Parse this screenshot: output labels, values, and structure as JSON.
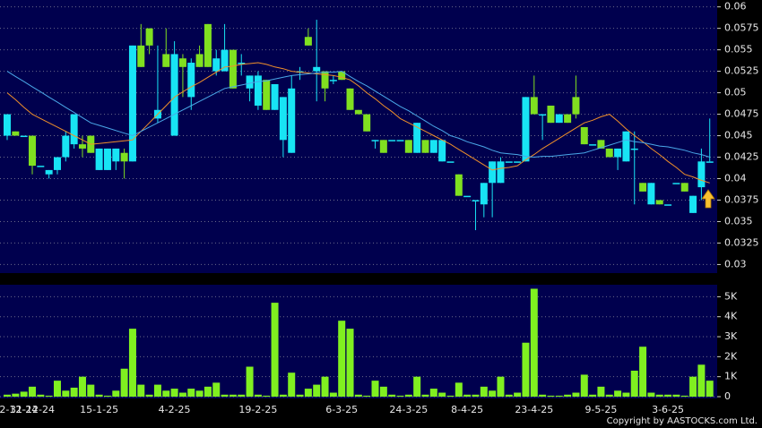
{
  "chart_data": [
    {
      "type": "candlestick",
      "categories": [
        null,
        "12-12-24",
        null,
        "31-12-24",
        null,
        null,
        null,
        null,
        null,
        null,
        null,
        "15-1-25",
        null,
        null,
        null,
        null,
        null,
        null,
        null,
        null,
        "4-2-25",
        null,
        null,
        null,
        null,
        null,
        null,
        null,
        null,
        null,
        "19-2-25",
        null,
        null,
        null,
        null,
        null,
        null,
        null,
        null,
        null,
        "6-3-25",
        null,
        null,
        null,
        null,
        null,
        null,
        null,
        "24-3-25",
        null,
        null,
        null,
        null,
        null,
        null,
        "8-4-25",
        null,
        null,
        null,
        null,
        null,
        null,
        null,
        "23-4-25",
        null,
        null,
        null,
        null,
        null,
        null,
        null,
        "9-5-25",
        null,
        null,
        null,
        null,
        null,
        null,
        null,
        "3-6-25",
        null,
        null,
        null,
        null,
        null
      ],
      "open": [
        0.045,
        0.0455,
        0.045,
        0.045,
        0.0415,
        0.0405,
        0.041,
        0.0425,
        0.044,
        0.044,
        0.045,
        0.041,
        0.041,
        0.042,
        0.043,
        0.042,
        0.0555,
        0.0575,
        0.047,
        0.0545,
        0.045,
        0.054,
        0.0495,
        0.0545,
        0.058,
        0.0525,
        0.0525,
        0.055,
        0.0535,
        0.0505,
        0.0485,
        0.0515,
        0.048,
        0.0445,
        0.043,
        0.0525,
        0.0565,
        0.0525,
        0.0525,
        0.0515,
        0.0525,
        0.0505,
        0.048,
        0.0475,
        0.0445,
        0.0445,
        0.0445,
        0.0445,
        0.0445,
        0.043,
        0.0445,
        0.043,
        0.042,
        0.042,
        0.0405,
        0.038,
        0.0375,
        0.037,
        0.0395,
        0.0395,
        0.042,
        0.042,
        0.042,
        0.0495,
        0.0475,
        0.0485,
        0.0465,
        0.0475,
        0.0495,
        0.046,
        0.044,
        0.0445,
        0.0435,
        0.0425,
        0.042,
        0.0435,
        0.0395,
        0.037,
        0.0375,
        0.037,
        0.0395,
        0.0395,
        0.036,
        0.039,
        0.042
      ],
      "high": [
        0.0475,
        0.0455,
        0.045,
        0.045,
        0.0415,
        0.041,
        0.0425,
        0.0455,
        0.0475,
        0.045,
        0.045,
        0.0435,
        0.0435,
        0.0435,
        0.0435,
        0.0555,
        0.058,
        0.0575,
        0.0555,
        0.0575,
        0.056,
        0.0545,
        0.054,
        0.0555,
        0.058,
        0.055,
        0.058,
        0.055,
        0.0545,
        0.052,
        0.0525,
        0.0515,
        0.051,
        0.0495,
        0.052,
        0.053,
        0.0575,
        0.0585,
        0.0525,
        0.052,
        0.0525,
        0.0505,
        0.048,
        0.0475,
        0.0445,
        0.0445,
        0.0445,
        0.0445,
        0.0445,
        0.0465,
        0.0445,
        0.0445,
        0.0445,
        0.042,
        0.0405,
        0.038,
        0.0375,
        0.0395,
        0.042,
        0.0425,
        0.042,
        0.042,
        0.0495,
        0.052,
        0.0475,
        0.0485,
        0.0475,
        0.0475,
        0.052,
        0.046,
        0.044,
        0.0445,
        0.0435,
        0.0435,
        0.0455,
        0.0455,
        0.0395,
        0.0395,
        0.0375,
        0.037,
        0.0395,
        0.0395,
        0.038,
        0.0435,
        0.047
      ],
      "low": [
        0.0445,
        0.045,
        0.045,
        0.0405,
        0.0415,
        0.04,
        0.0405,
        0.042,
        0.0435,
        0.0425,
        0.043,
        0.041,
        0.041,
        0.041,
        0.04,
        0.042,
        0.053,
        0.0545,
        0.0465,
        0.053,
        0.045,
        0.0495,
        0.048,
        0.053,
        0.053,
        0.052,
        0.0525,
        0.0505,
        0.052,
        0.049,
        0.048,
        0.048,
        0.048,
        0.0425,
        0.043,
        0.0515,
        0.0555,
        0.049,
        0.049,
        0.051,
        0.0515,
        0.048,
        0.0475,
        0.0455,
        0.0435,
        0.043,
        0.0445,
        0.0445,
        0.043,
        0.043,
        0.043,
        0.043,
        0.042,
        0.042,
        0.038,
        0.038,
        0.034,
        0.0355,
        0.0355,
        0.0395,
        0.042,
        0.042,
        0.042,
        0.0475,
        0.0445,
        0.0465,
        0.0465,
        0.0465,
        0.047,
        0.044,
        0.044,
        0.0435,
        0.0425,
        0.041,
        0.042,
        0.037,
        0.0385,
        0.037,
        0.037,
        0.037,
        0.0395,
        0.0385,
        0.036,
        0.0375,
        0.042
      ],
      "close": [
        0.0475,
        0.045,
        0.045,
        0.0415,
        0.0415,
        0.041,
        0.0425,
        0.045,
        0.0475,
        0.0435,
        0.043,
        0.0435,
        0.0435,
        0.0435,
        0.042,
        0.0555,
        0.053,
        0.0555,
        0.048,
        0.053,
        0.0545,
        0.053,
        0.0535,
        0.053,
        0.053,
        0.054,
        0.055,
        0.0505,
        0.0535,
        0.052,
        0.052,
        0.048,
        0.051,
        0.0495,
        0.0505,
        0.0525,
        0.0555,
        0.053,
        0.0505,
        0.0515,
        0.0515,
        0.048,
        0.0475,
        0.0455,
        0.0445,
        0.043,
        0.0445,
        0.0445,
        0.043,
        0.0465,
        0.043,
        0.0445,
        0.0445,
        0.042,
        0.038,
        0.038,
        0.0375,
        0.0395,
        0.042,
        0.042,
        0.042,
        0.042,
        0.0495,
        0.0475,
        0.0475,
        0.0465,
        0.0475,
        0.0465,
        0.0475,
        0.044,
        0.044,
        0.0435,
        0.0425,
        0.0435,
        0.0455,
        0.0435,
        0.0385,
        0.0395,
        0.037,
        0.037,
        0.0395,
        0.0385,
        0.038,
        0.042,
        0.042
      ],
      "up_color": "#18e4f4",
      "down_color": "#80e020",
      "lines": [
        {
          "color": "#f0902a",
          "values": [
            0.05,
            0.0492,
            0.0483,
            0.0475,
            0.047,
            0.0465,
            0.046,
            0.0455,
            0.045,
            0.0445,
            0.044,
            0.0441,
            0.0442,
            0.0443,
            0.0444,
            0.0445,
            0.0455,
            0.0465,
            0.0475,
            0.0485,
            0.0495,
            0.0501,
            0.0507,
            0.0512,
            0.0518,
            0.0524,
            0.053,
            0.0531,
            0.0533,
            0.0534,
            0.0535,
            0.0533,
            0.053,
            0.0528,
            0.0525,
            0.0524,
            0.0523,
            0.0522,
            0.0521,
            0.052,
            0.0518,
            0.0515,
            0.0508,
            0.05,
            0.0493,
            0.0485,
            0.0478,
            0.047,
            0.0465,
            0.046,
            0.0455,
            0.045,
            0.0445,
            0.044,
            0.0434,
            0.0428,
            0.0422,
            0.0416,
            0.041,
            0.0412,
            0.0413,
            0.0415,
            0.0422,
            0.0428,
            0.0435,
            0.0441,
            0.0447,
            0.0453,
            0.0459,
            0.0465,
            0.0468,
            0.0472,
            0.0475,
            0.0467,
            0.0458,
            0.045,
            0.0443,
            0.0435,
            0.0428,
            0.042,
            0.0413,
            0.0405,
            0.0402,
            0.0398,
            0.0395
          ]
        },
        {
          "color": "#4aa8e8",
          "values": [
            0.0525,
            0.0519,
            0.0513,
            0.0507,
            0.0501,
            0.0495,
            0.0489,
            0.0483,
            0.0477,
            0.0471,
            0.0465,
            0.0462,
            0.0459,
            0.0456,
            0.0453,
            0.045,
            0.0455,
            0.046,
            0.0465,
            0.047,
            0.0475,
            0.048,
            0.0485,
            0.049,
            0.0495,
            0.05,
            0.0505,
            0.0507,
            0.0509,
            0.0511,
            0.0513,
            0.0514,
            0.0516,
            0.0518,
            0.052,
            0.0521,
            0.0522,
            0.0523,
            0.0524,
            0.0524,
            0.0525,
            0.0519,
            0.0513,
            0.0508,
            0.0502,
            0.0496,
            0.049,
            0.0484,
            0.0479,
            0.0473,
            0.0467,
            0.0461,
            0.0456,
            0.045,
            0.0447,
            0.0443,
            0.044,
            0.0437,
            0.0433,
            0.043,
            0.0429,
            0.0428,
            0.0426,
            0.0425,
            0.0426,
            0.0426,
            0.0427,
            0.0428,
            0.0429,
            0.043,
            0.0433,
            0.0436,
            0.0439,
            0.0442,
            0.0445,
            0.0443,
            0.0442,
            0.044,
            0.0438,
            0.0437,
            0.0435,
            0.0433,
            0.043,
            0.0428,
            0.0425
          ]
        }
      ],
      "ylim": [
        0.029,
        0.0608
      ],
      "yticks": [
        0.03,
        0.0325,
        0.035,
        0.0375,
        0.04,
        0.0425,
        0.045,
        0.0475,
        0.05,
        0.0525,
        0.055,
        0.0575,
        0.06
      ],
      "grid": true
    },
    {
      "type": "bar",
      "values": [
        100,
        150,
        250,
        500,
        100,
        50,
        800,
        300,
        450,
        1000,
        600,
        100,
        50,
        300,
        1400,
        3400,
        600,
        100,
        600,
        300,
        400,
        200,
        400,
        300,
        500,
        700,
        100,
        100,
        100,
        1500,
        100,
        50,
        4700,
        100,
        1200,
        100,
        400,
        600,
        1000,
        200,
        3800,
        3400,
        100,
        50,
        800,
        500,
        100,
        50,
        100,
        1000,
        100,
        400,
        200,
        50,
        700,
        100,
        100,
        500,
        300,
        1000,
        100,
        200,
        2700,
        5400,
        100,
        50,
        50,
        100,
        200,
        1100,
        100,
        500,
        100,
        300,
        200,
        1300,
        2500,
        200,
        100,
        100,
        100,
        50,
        1000,
        1600,
        800
      ],
      "color": "#80f020",
      "ylim": [
        0,
        5600
      ],
      "yticks": [
        0,
        {
          "value": 1000,
          "label": "1K"
        },
        {
          "value": 2000,
          "label": "2K"
        },
        {
          "value": 3000,
          "label": "3K"
        },
        {
          "value": 4000,
          "label": "4K"
        },
        {
          "value": 5000,
          "label": "5K"
        }
      ],
      "grid": true
    }
  ],
  "copyright": "Copyright by AASTOCKS.com Ltd."
}
